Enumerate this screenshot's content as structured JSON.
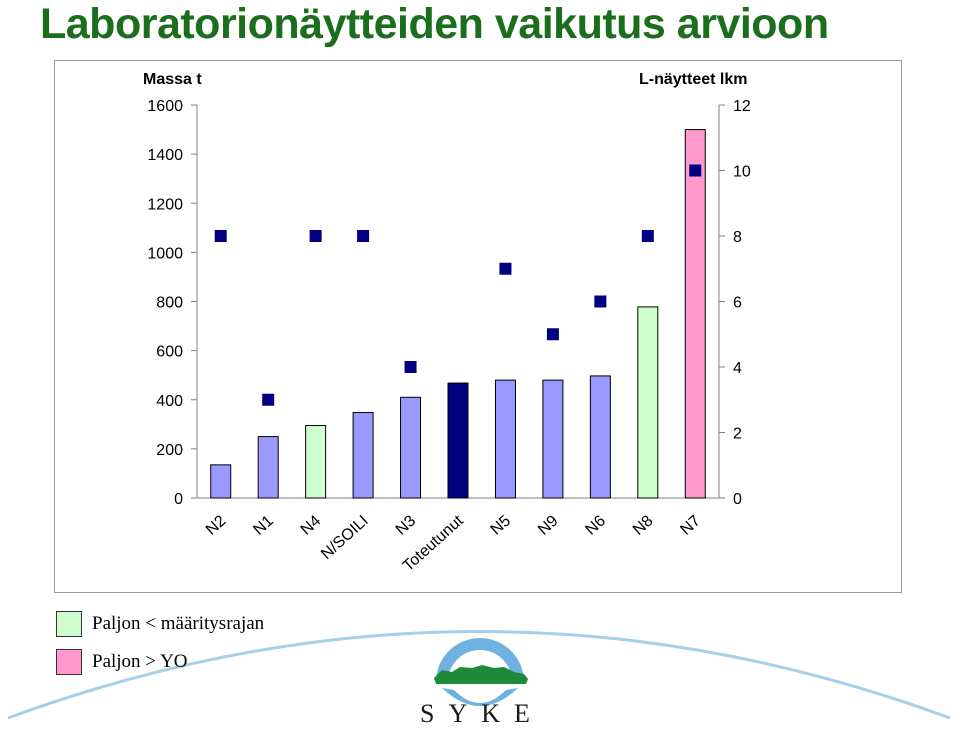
{
  "title": "Laboratorionäytteiden vaikutus arvioon",
  "chart_data": {
    "type": "bar",
    "categories": [
      "N2",
      "N1",
      "N4",
      "N/SOILI",
      "N3",
      "Toteutunut",
      "N5",
      "N9",
      "N6",
      "N8",
      "N7"
    ],
    "series": [
      {
        "name": "Massa t",
        "axis": "left",
        "values": [
          135,
          250,
          295,
          348,
          410,
          468,
          480,
          480,
          497,
          778,
          1500
        ],
        "colors": [
          "#9999ff",
          "#9999ff",
          "#ccffcc",
          "#9999ff",
          "#9999ff",
          "#000080",
          "#9999ff",
          "#9999ff",
          "#9999ff",
          "#ccffcc",
          "#ff99cc"
        ]
      },
      {
        "name": "L-näytteet lkm",
        "axis": "right",
        "type": "scatter",
        "values": [
          8,
          3,
          8,
          8,
          4,
          null,
          7,
          5,
          6,
          8,
          10
        ],
        "color": "#000080"
      }
    ],
    "ylabel_left": "Massa t",
    "ylabel_right": "L-näytteet lkm",
    "ylim_left": [
      0,
      1600
    ],
    "ylim_right": [
      0,
      12
    ],
    "yticks_left": [
      0,
      200,
      400,
      600,
      800,
      1000,
      1200,
      1400,
      1600
    ],
    "yticks_right": [
      0,
      2,
      4,
      6,
      8,
      10,
      12
    ],
    "grid": false,
    "legend": "bottom-left"
  },
  "legend": [
    {
      "label": "Paljon < määritysrajan",
      "color": "#ccffcc"
    },
    {
      "label": "Paljon > YO",
      "color": "#ff99cc"
    }
  ],
  "logo": {
    "text": "SYKE"
  },
  "colors": {
    "title": "#1b6e1b",
    "navy": "#000080",
    "frame": "#9a9a9a",
    "swoosh": "#a8cfe8"
  }
}
